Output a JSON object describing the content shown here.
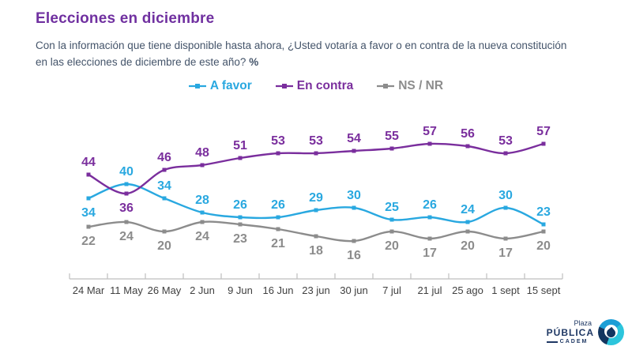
{
  "header": {
    "title": "Elecciones en diciembre",
    "subtitle_line1": "Con la información que tiene disponible hasta ahora, ¿Usted votaría a favor o en contra de la nueva constitución",
    "subtitle_line2": "en las elecciones de diciembre de este año?",
    "subtitle_suffix": "%"
  },
  "chart_data": {
    "type": "line",
    "title": "Elecciones en diciembre",
    "xlabel": "",
    "ylabel": "",
    "ylim": [
      0,
      60
    ],
    "grid": false,
    "smoothed_lines": true,
    "data_labels": true,
    "legend_position": "top-center",
    "axis_color": "#BFBFBF",
    "tick_label_color": "#404040",
    "categories": [
      "24 Mar",
      "11 May",
      "26 May",
      "2 Jun",
      "9 Jun",
      "16 Jun",
      "23 jun",
      "30 jun",
      "7 jul",
      "21 jul",
      "25 ago",
      "1 sept",
      "15 sept"
    ],
    "series": [
      {
        "name": "A favor",
        "color": "#29A8E0",
        "values": [
          34,
          40,
          34,
          28,
          26,
          26,
          29,
          30,
          25,
          26,
          24,
          30,
          23
        ],
        "labels_below": [
          0
        ]
      },
      {
        "name": "En contra",
        "color": "#7A2E9D",
        "values": [
          44,
          36,
          46,
          48,
          51,
          53,
          53,
          54,
          55,
          57,
          56,
          53,
          57
        ],
        "labels_below": [
          1
        ]
      },
      {
        "name": "NS / NR",
        "color": "#8C8C8C",
        "values": [
          22,
          24,
          20,
          24,
          23,
          21,
          18,
          16,
          20,
          17,
          20,
          17,
          20
        ],
        "labels_below": [
          0,
          1,
          2,
          3,
          4,
          5,
          6,
          7,
          8,
          9,
          10,
          11,
          12
        ]
      }
    ]
  },
  "logo": {
    "line1": "Plaza",
    "line2": "PÚBLICA",
    "line3": "CADEM"
  }
}
